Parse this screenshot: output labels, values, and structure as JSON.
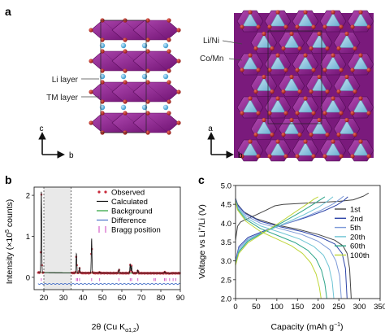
{
  "panels": {
    "a": {
      "letter": "a",
      "left": {
        "labels": [
          "Li layer",
          "TM layer"
        ],
        "axis_up": "c",
        "axis_right": "b"
      },
      "right": {
        "labels": [
          "Li/Ni",
          "Co/Mn"
        ],
        "axis_up": "a",
        "axis_right": "b"
      }
    },
    "b": {
      "letter": "b"
    },
    "c": {
      "letter": "c"
    }
  },
  "colors": {
    "tm_octahedron": "#8d1f8f",
    "li_octahedron": "#8fc4df",
    "oxygen_atom": "#b1221d",
    "li_atom": "#59b6e6",
    "observed": "#c8283a",
    "calculated": "#111111",
    "background": "#27a037",
    "difference": "#4a73c9",
    "bragg": "#d65fc7",
    "excluded_region": "#e9e9e9",
    "cycle_1st": "#444444",
    "cycle_2nd": "#2e45a8",
    "cycle_5th": "#7d9ad8",
    "cycle_20th": "#6ec4d4",
    "cycle_60th": "#2fa58a",
    "cycle_100th": "#bfd63a"
  },
  "chart_data": [
    {
      "type": "line",
      "panel": "b",
      "xlabel_main": "2θ (Cu K",
      "xlabel_sub": "α1,2",
      "xlabel_end": ")",
      "ylabel_main": "Intensity (×10",
      "ylabel_sup": "5",
      "ylabel_end": " counts)",
      "xlim": [
        15,
        90
      ],
      "ylim": [
        -0.3,
        2.2
      ],
      "xticks": [
        "20",
        "30",
        "40",
        "50",
        "60",
        "70",
        "80",
        "90"
      ],
      "yticks": [
        "0",
        "1",
        "2"
      ],
      "excluded_region": [
        20,
        34
      ],
      "legend": [
        "Observed",
        "Calculated",
        "Background",
        "Difference",
        "Bragg position"
      ],
      "legend_position": "top-right",
      "peaks": [
        {
          "x": 18.7,
          "y": 2.1
        },
        {
          "x": 36.7,
          "y": 0.58
        },
        {
          "x": 38.3,
          "y": 0.24
        },
        {
          "x": 44.5,
          "y": 0.95
        },
        {
          "x": 48.6,
          "y": 0.13
        },
        {
          "x": 58.5,
          "y": 0.2
        },
        {
          "x": 64.3,
          "y": 0.32
        },
        {
          "x": 65.0,
          "y": 0.28
        },
        {
          "x": 68.2,
          "y": 0.18
        },
        {
          "x": 77.2,
          "y": 0.1
        },
        {
          "x": 82.0,
          "y": 0.14
        },
        {
          "x": 84.5,
          "y": 0.09
        }
      ],
      "bragg_positions": [
        18.7,
        36.7,
        37.3,
        38.3,
        44.5,
        48.6,
        58.5,
        64.3,
        65.0,
        68.2,
        76.5,
        77.2,
        81.9,
        82.6,
        84.5,
        86.3,
        87.7
      ]
    },
    {
      "type": "line",
      "panel": "c",
      "xlabel_main": "Capacity (mAh g",
      "xlabel_sup": "−1",
      "xlabel_end": ")",
      "ylabel": "Voltage vs Li",
      "ylabel_sup": "+",
      "ylabel_end": "/Li (V)",
      "xlim": [
        0,
        350
      ],
      "ylim": [
        2.0,
        5.0
      ],
      "xticks": [
        "0",
        "50",
        "100",
        "150",
        "200",
        "250",
        "300",
        "350"
      ],
      "yticks": [
        "2.0",
        "2.5",
        "3.0",
        "3.5",
        "4.0",
        "4.5",
        "5.0"
      ],
      "legend_position": "right",
      "series": [
        {
          "name": "1st",
          "charge": [
            [
              0,
              3.55
            ],
            [
              5,
              3.92
            ],
            [
              12,
              4.03
            ],
            [
              25,
              4.1
            ],
            [
              50,
              4.22
            ],
            [
              75,
              4.35
            ],
            [
              95,
              4.46
            ],
            [
              115,
              4.5
            ],
            [
              150,
              4.52
            ],
            [
              200,
              4.55
            ],
            [
              250,
              4.58
            ],
            [
              285,
              4.62
            ],
            [
              310,
              4.72
            ],
            [
              322,
              4.8
            ]
          ],
          "discharge": [
            [
              0,
              4.66
            ],
            [
              5,
              4.5
            ],
            [
              20,
              4.3
            ],
            [
              50,
              4.12
            ],
            [
              100,
              3.95
            ],
            [
              150,
              3.84
            ],
            [
              200,
              3.7
            ],
            [
              240,
              3.55
            ],
            [
              260,
              3.4
            ],
            [
              270,
              3.2
            ],
            [
              276,
              2.8
            ],
            [
              280,
              2.0
            ]
          ]
        },
        {
          "name": "2nd",
          "charge": [
            [
              0,
              3.0
            ],
            [
              8,
              3.38
            ],
            [
              30,
              3.62
            ],
            [
              70,
              3.8
            ],
            [
              120,
              3.98
            ],
            [
              170,
              4.15
            ],
            [
              215,
              4.33
            ],
            [
              245,
              4.48
            ],
            [
              262,
              4.6
            ],
            [
              272,
              4.7
            ]
          ],
          "discharge": [
            [
              0,
              4.65
            ],
            [
              5,
              4.48
            ],
            [
              25,
              4.25
            ],
            [
              60,
              4.05
            ],
            [
              110,
              3.9
            ],
            [
              160,
              3.78
            ],
            [
              205,
              3.63
            ],
            [
              240,
              3.45
            ],
            [
              258,
              3.2
            ],
            [
              266,
              2.8
            ],
            [
              270,
              2.0
            ]
          ]
        },
        {
          "name": "5th",
          "charge": [
            [
              0,
              2.95
            ],
            [
              8,
              3.33
            ],
            [
              30,
              3.58
            ],
            [
              70,
              3.78
            ],
            [
              120,
              3.98
            ],
            [
              170,
              4.17
            ],
            [
              210,
              4.36
            ],
            [
              238,
              4.52
            ],
            [
              254,
              4.65
            ],
            [
              262,
              4.72
            ]
          ],
          "discharge": [
            [
              0,
              4.63
            ],
            [
              5,
              4.45
            ],
            [
              25,
              4.2
            ],
            [
              60,
              4.0
            ],
            [
              110,
              3.85
            ],
            [
              160,
              3.7
            ],
            [
              200,
              3.52
            ],
            [
              228,
              3.3
            ],
            [
              243,
              3.0
            ],
            [
              252,
              2.6
            ],
            [
              256,
              2.0
            ]
          ]
        },
        {
          "name": "20th",
          "charge": [
            [
              0,
              2.92
            ],
            [
              8,
              3.28
            ],
            [
              30,
              3.55
            ],
            [
              70,
              3.77
            ],
            [
              120,
              4.0
            ],
            [
              165,
              4.22
            ],
            [
              200,
              4.42
            ],
            [
              222,
              4.58
            ],
            [
              236,
              4.7
            ]
          ],
          "discharge": [
            [
              0,
              4.62
            ],
            [
              5,
              4.42
            ],
            [
              25,
              4.15
            ],
            [
              60,
              3.93
            ],
            [
              110,
              3.75
            ],
            [
              155,
              3.58
            ],
            [
              190,
              3.38
            ],
            [
              213,
              3.15
            ],
            [
              226,
              2.85
            ],
            [
              234,
              2.45
            ],
            [
              238,
              2.0
            ]
          ]
        },
        {
          "name": "60th",
          "charge": [
            [
              0,
              2.9
            ],
            [
              8,
              3.24
            ],
            [
              30,
              3.52
            ],
            [
              70,
              3.77
            ],
            [
              115,
              4.03
            ],
            [
              155,
              4.28
            ],
            [
              185,
              4.48
            ],
            [
              205,
              4.62
            ],
            [
              216,
              4.7
            ]
          ],
          "discharge": [
            [
              0,
              4.6
            ],
            [
              5,
              4.38
            ],
            [
              25,
              4.1
            ],
            [
              60,
              3.86
            ],
            [
              105,
              3.66
            ],
            [
              145,
              3.48
            ],
            [
              175,
              3.28
            ],
            [
              195,
              3.05
            ],
            [
              208,
              2.75
            ],
            [
              216,
              2.4
            ],
            [
              221,
              2.0
            ]
          ]
        },
        {
          "name": "100th",
          "charge": [
            [
              0,
              2.88
            ],
            [
              8,
              3.2
            ],
            [
              30,
              3.48
            ],
            [
              70,
              3.76
            ],
            [
              110,
              4.04
            ],
            [
              145,
              4.3
            ],
            [
              172,
              4.5
            ],
            [
              190,
              4.64
            ],
            [
              200,
              4.7
            ]
          ],
          "discharge": [
            [
              0,
              4.58
            ],
            [
              5,
              4.35
            ],
            [
              25,
              4.05
            ],
            [
              60,
              3.78
            ],
            [
              100,
              3.58
            ],
            [
              135,
              3.4
            ],
            [
              162,
              3.2
            ],
            [
              182,
              2.95
            ],
            [
              195,
              2.65
            ],
            [
              203,
              2.3
            ],
            [
              207,
              2.0
            ]
          ]
        }
      ]
    }
  ]
}
